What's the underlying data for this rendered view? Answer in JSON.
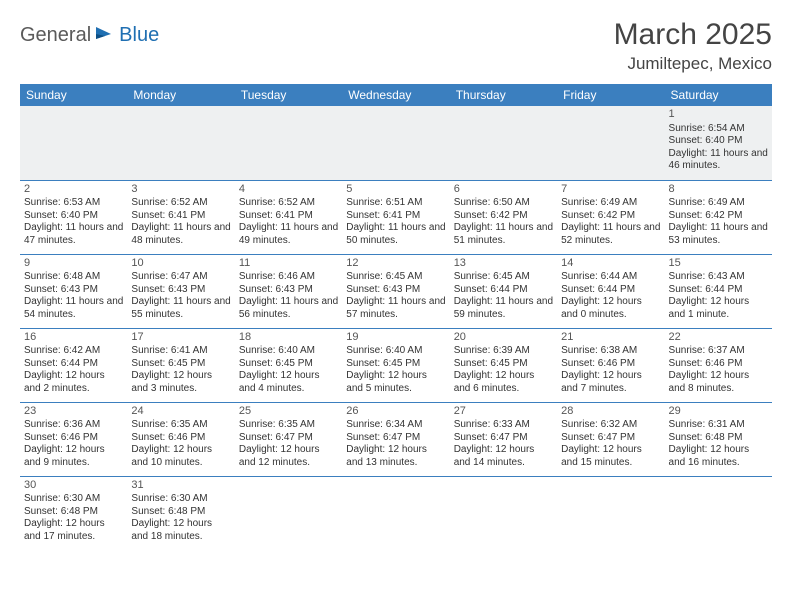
{
  "logo": {
    "text1": "General",
    "text2": "Blue"
  },
  "title": "March 2025",
  "location": "Jumiltepec, Mexico",
  "colors": {
    "header_bg": "#3b7fbf",
    "header_text": "#ffffff",
    "border": "#3b7fbf",
    "filler_bg": "#eef0f1",
    "logo_gray": "#5a5a5a",
    "logo_blue": "#1f6fb2"
  },
  "day_headers": [
    "Sunday",
    "Monday",
    "Tuesday",
    "Wednesday",
    "Thursday",
    "Friday",
    "Saturday"
  ],
  "weeks": [
    [
      null,
      null,
      null,
      null,
      null,
      null,
      {
        "n": "1",
        "sr": "6:54 AM",
        "ss": "6:40 PM",
        "dl": "11 hours and 46 minutes."
      }
    ],
    [
      {
        "n": "2",
        "sr": "6:53 AM",
        "ss": "6:40 PM",
        "dl": "11 hours and 47 minutes."
      },
      {
        "n": "3",
        "sr": "6:52 AM",
        "ss": "6:41 PM",
        "dl": "11 hours and 48 minutes."
      },
      {
        "n": "4",
        "sr": "6:52 AM",
        "ss": "6:41 PM",
        "dl": "11 hours and 49 minutes."
      },
      {
        "n": "5",
        "sr": "6:51 AM",
        "ss": "6:41 PM",
        "dl": "11 hours and 50 minutes."
      },
      {
        "n": "6",
        "sr": "6:50 AM",
        "ss": "6:42 PM",
        "dl": "11 hours and 51 minutes."
      },
      {
        "n": "7",
        "sr": "6:49 AM",
        "ss": "6:42 PM",
        "dl": "11 hours and 52 minutes."
      },
      {
        "n": "8",
        "sr": "6:49 AM",
        "ss": "6:42 PM",
        "dl": "11 hours and 53 minutes."
      }
    ],
    [
      {
        "n": "9",
        "sr": "6:48 AM",
        "ss": "6:43 PM",
        "dl": "11 hours and 54 minutes."
      },
      {
        "n": "10",
        "sr": "6:47 AM",
        "ss": "6:43 PM",
        "dl": "11 hours and 55 minutes."
      },
      {
        "n": "11",
        "sr": "6:46 AM",
        "ss": "6:43 PM",
        "dl": "11 hours and 56 minutes."
      },
      {
        "n": "12",
        "sr": "6:45 AM",
        "ss": "6:43 PM",
        "dl": "11 hours and 57 minutes."
      },
      {
        "n": "13",
        "sr": "6:45 AM",
        "ss": "6:44 PM",
        "dl": "11 hours and 59 minutes."
      },
      {
        "n": "14",
        "sr": "6:44 AM",
        "ss": "6:44 PM",
        "dl": "12 hours and 0 minutes."
      },
      {
        "n": "15",
        "sr": "6:43 AM",
        "ss": "6:44 PM",
        "dl": "12 hours and 1 minute."
      }
    ],
    [
      {
        "n": "16",
        "sr": "6:42 AM",
        "ss": "6:44 PM",
        "dl": "12 hours and 2 minutes."
      },
      {
        "n": "17",
        "sr": "6:41 AM",
        "ss": "6:45 PM",
        "dl": "12 hours and 3 minutes."
      },
      {
        "n": "18",
        "sr": "6:40 AM",
        "ss": "6:45 PM",
        "dl": "12 hours and 4 minutes."
      },
      {
        "n": "19",
        "sr": "6:40 AM",
        "ss": "6:45 PM",
        "dl": "12 hours and 5 minutes."
      },
      {
        "n": "20",
        "sr": "6:39 AM",
        "ss": "6:45 PM",
        "dl": "12 hours and 6 minutes."
      },
      {
        "n": "21",
        "sr": "6:38 AM",
        "ss": "6:46 PM",
        "dl": "12 hours and 7 minutes."
      },
      {
        "n": "22",
        "sr": "6:37 AM",
        "ss": "6:46 PM",
        "dl": "12 hours and 8 minutes."
      }
    ],
    [
      {
        "n": "23",
        "sr": "6:36 AM",
        "ss": "6:46 PM",
        "dl": "12 hours and 9 minutes."
      },
      {
        "n": "24",
        "sr": "6:35 AM",
        "ss": "6:46 PM",
        "dl": "12 hours and 10 minutes."
      },
      {
        "n": "25",
        "sr": "6:35 AM",
        "ss": "6:47 PM",
        "dl": "12 hours and 12 minutes."
      },
      {
        "n": "26",
        "sr": "6:34 AM",
        "ss": "6:47 PM",
        "dl": "12 hours and 13 minutes."
      },
      {
        "n": "27",
        "sr": "6:33 AM",
        "ss": "6:47 PM",
        "dl": "12 hours and 14 minutes."
      },
      {
        "n": "28",
        "sr": "6:32 AM",
        "ss": "6:47 PM",
        "dl": "12 hours and 15 minutes."
      },
      {
        "n": "29",
        "sr": "6:31 AM",
        "ss": "6:48 PM",
        "dl": "12 hours and 16 minutes."
      }
    ],
    [
      {
        "n": "30",
        "sr": "6:30 AM",
        "ss": "6:48 PM",
        "dl": "12 hours and 17 minutes."
      },
      {
        "n": "31",
        "sr": "6:30 AM",
        "ss": "6:48 PM",
        "dl": "12 hours and 18 minutes."
      },
      null,
      null,
      null,
      null,
      null
    ]
  ],
  "labels": {
    "sunrise": "Sunrise: ",
    "sunset": "Sunset: ",
    "daylight": "Daylight: "
  }
}
